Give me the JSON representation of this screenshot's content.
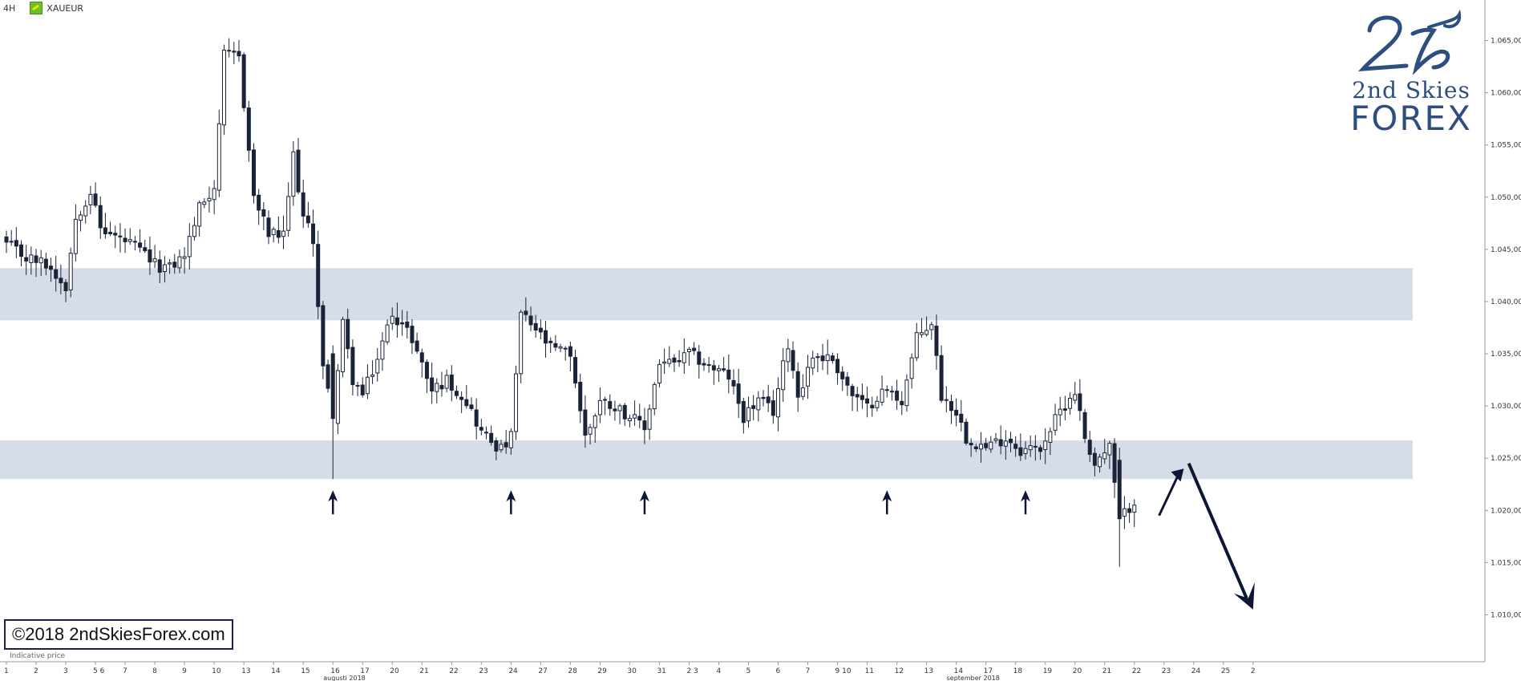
{
  "header": {
    "timeframe": "4H",
    "symbol": "XAUEUR"
  },
  "logo": {
    "line1": "2nd Skies",
    "line2": "FOREX"
  },
  "copyright": "©2018 2ndSkiesForex.com",
  "footnote": "Indicative price",
  "colors": {
    "bull": "#ffffff",
    "bear": "#1b2338",
    "zone": "#d7dde8",
    "arrow": "#0e1636",
    "brand": "#2d4e7e"
  },
  "chart_data": {
    "type": "candlestick",
    "y_ticks": [
      "1.065,00",
      "1.060,00",
      "1.055,00",
      "1.050,00",
      "1.045,00",
      "1.040,00",
      "1.035,00",
      "1.030,00",
      "1.025,00",
      "1.020,00",
      "1.015,00",
      "1.010,00"
    ],
    "ylim": [
      1005.5,
      1067.5
    ],
    "x_ticks": [
      {
        "label": "1",
        "i": 0
      },
      {
        "label": "2",
        "i": 6
      },
      {
        "label": "3",
        "i": 12
      },
      {
        "label": "5 6",
        "i": 18
      },
      {
        "label": "7",
        "i": 24
      },
      {
        "label": "8",
        "i": 30
      },
      {
        "label": "9",
        "i": 36
      },
      {
        "label": "10",
        "i": 42
      },
      {
        "label": "13",
        "i": 48
      },
      {
        "label": "14",
        "i": 54
      },
      {
        "label": "15",
        "i": 60
      },
      {
        "label": "16",
        "i": 66
      },
      {
        "label": "17",
        "i": 72
      },
      {
        "label": "20",
        "i": 78
      },
      {
        "label": "21",
        "i": 84
      },
      {
        "label": "22",
        "i": 90
      },
      {
        "label": "23",
        "i": 96
      },
      {
        "label": "24",
        "i": 102
      },
      {
        "label": "27",
        "i": 108
      },
      {
        "label": "28",
        "i": 114
      },
      {
        "label": "29",
        "i": 120
      },
      {
        "label": "30",
        "i": 126
      },
      {
        "label": "31",
        "i": 132
      },
      {
        "label": "2 3",
        "i": 138
      },
      {
        "label": "4",
        "i": 144
      },
      {
        "label": "5",
        "i": 150
      },
      {
        "label": "6",
        "i": 156
      },
      {
        "label": "7",
        "i": 162
      },
      {
        "label": "9 10",
        "i": 168
      },
      {
        "label": "11",
        "i": 174
      },
      {
        "label": "12",
        "i": 180
      },
      {
        "label": "13",
        "i": 186
      },
      {
        "label": "14",
        "i": 192
      },
      {
        "label": "17",
        "i": 198
      },
      {
        "label": "18",
        "i": 204
      },
      {
        "label": "19",
        "i": 210
      },
      {
        "label": "20",
        "i": 216
      },
      {
        "label": "21",
        "i": 222
      },
      {
        "label": "22",
        "i": 228
      },
      {
        "label": "23",
        "i": 234
      },
      {
        "label": "24",
        "i": 240
      },
      {
        "label": "25",
        "i": 246
      },
      {
        "label": "2",
        "i": 252
      }
    ],
    "month_labels": [
      {
        "label": "augusti 2018",
        "i": 66
      },
      {
        "label": "september 2018",
        "i": 192
      }
    ],
    "zones": [
      [
        1038.2,
        1043.2
      ],
      [
        1023.0,
        1026.7
      ]
    ],
    "up_arrows_at": [
      66,
      102,
      129,
      178,
      206
    ],
    "anchors": [
      [
        0,
        1045.5
      ],
      [
        4,
        1044.2
      ],
      [
        8,
        1043.6
      ],
      [
        12,
        1041.5
      ],
      [
        14,
        1048.0
      ],
      [
        17,
        1050.6
      ],
      [
        19,
        1047.0
      ],
      [
        22,
        1046.2
      ],
      [
        25,
        1045.5
      ],
      [
        28,
        1044.5
      ],
      [
        30,
        1043.5
      ],
      [
        33,
        1043.2
      ],
      [
        36,
        1044.5
      ],
      [
        39,
        1049.0
      ],
      [
        42,
        1051.0
      ],
      [
        44,
        1063.5
      ],
      [
        47,
        1063.5
      ],
      [
        50,
        1050.0
      ],
      [
        53,
        1046.5
      ],
      [
        56,
        1046.2
      ],
      [
        58,
        1054.0
      ],
      [
        60,
        1048.0
      ],
      [
        62,
        1046.0
      ],
      [
        64,
        1033.6
      ],
      [
        66,
        1029.0
      ],
      [
        68,
        1037.8
      ],
      [
        70,
        1032.5
      ],
      [
        72,
        1031.0
      ],
      [
        75,
        1034.5
      ],
      [
        78,
        1039.0
      ],
      [
        82,
        1036.5
      ],
      [
        86,
        1031.5
      ],
      [
        89,
        1032.5
      ],
      [
        93,
        1030.5
      ],
      [
        96,
        1027.5
      ],
      [
        100,
        1025.8
      ],
      [
        102,
        1027.0
      ],
      [
        104,
        1038.8
      ],
      [
        107,
        1037.3
      ],
      [
        110,
        1035.5
      ],
      [
        114,
        1035.0
      ],
      [
        117,
        1027.0
      ],
      [
        120,
        1030.5
      ],
      [
        123,
        1030.0
      ],
      [
        126,
        1029.0
      ],
      [
        129,
        1027.8
      ],
      [
        132,
        1034.2
      ],
      [
        135,
        1034.0
      ],
      [
        138,
        1035.0
      ],
      [
        142,
        1033.8
      ],
      [
        146,
        1032.8
      ],
      [
        149,
        1029.0
      ],
      [
        152,
        1030.5
      ],
      [
        155,
        1029.5
      ],
      [
        158,
        1036.0
      ],
      [
        160,
        1031.0
      ],
      [
        163,
        1034.8
      ],
      [
        167,
        1034.5
      ],
      [
        171,
        1031.0
      ],
      [
        174,
        1029.8
      ],
      [
        176,
        1031.0
      ],
      [
        178,
        1031.5
      ],
      [
        181,
        1030.5
      ],
      [
        184,
        1036.5
      ],
      [
        187,
        1038.0
      ],
      [
        189,
        1031.0
      ],
      [
        192,
        1029.5
      ],
      [
        194,
        1027.0
      ],
      [
        198,
        1026.0
      ],
      [
        202,
        1027.0
      ],
      [
        205,
        1025.8
      ],
      [
        209,
        1026.0
      ],
      [
        213,
        1029.5
      ],
      [
        216,
        1031.5
      ],
      [
        218,
        1027.0
      ],
      [
        220,
        1024.5
      ],
      [
        223,
        1026.0
      ],
      [
        225,
        1019.0
      ],
      [
        228,
        1021.0
      ]
    ],
    "special_candles": [
      {
        "i": 66,
        "o": 1035.0,
        "h": 1035.8,
        "l": 1023.0,
        "c": 1028.8
      },
      {
        "i": 225,
        "o": 1024.8,
        "h": 1026.0,
        "l": 1014.6,
        "c": 1019.2
      }
    ],
    "projection": {
      "from_i": 233,
      "from_y": 1019.5,
      "to_i": 238,
      "to_y": 1024.0,
      "drop_from_i": 239,
      "drop_from_y": 1024.5,
      "drop_to_i": 252,
      "drop_to_y": 1010.5
    }
  }
}
